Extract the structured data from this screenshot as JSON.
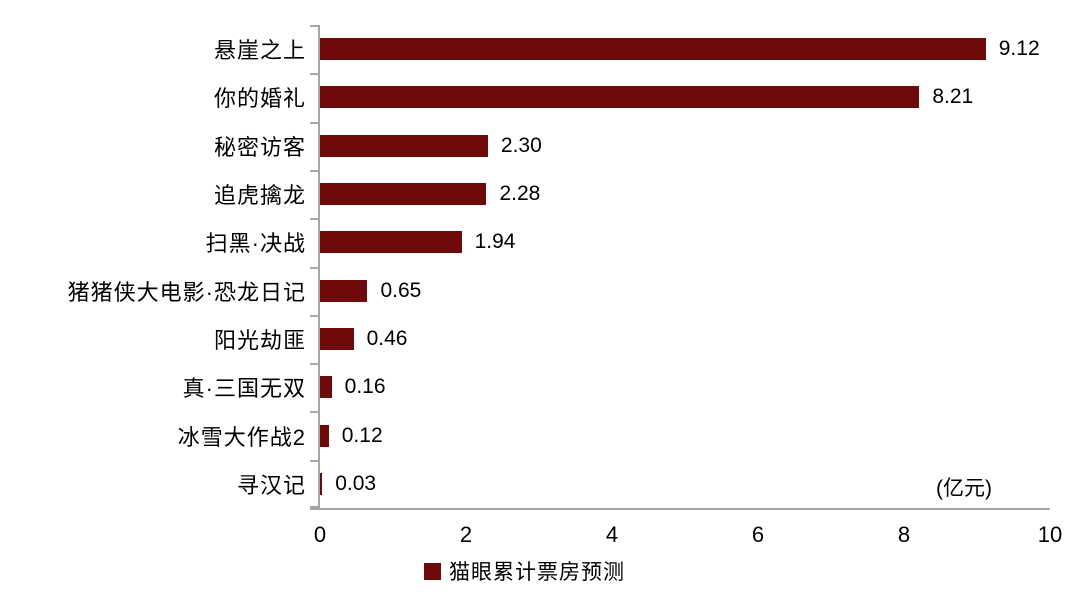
{
  "chart_data": {
    "type": "bar",
    "orientation": "horizontal",
    "title": "",
    "xlabel": "",
    "ylabel": "",
    "categories": [
      "悬崖之上",
      "你的婚礼",
      "秘密访客",
      "追虎擒龙",
      "扫黑·决战",
      "猪猪侠大电影·恐龙日记",
      "阳光劫匪",
      "真·三国无双",
      "冰雪大作战2",
      "寻汉记"
    ],
    "values": [
      9.12,
      8.21,
      2.3,
      2.28,
      1.94,
      0.65,
      0.46,
      0.16,
      0.12,
      0.03
    ],
    "value_labels": [
      "9.12",
      "8.21",
      "2.30",
      "2.28",
      "1.94",
      "0.65",
      "0.46",
      "0.16",
      "0.12",
      "0.03"
    ],
    "xlim": [
      0,
      10
    ],
    "x_ticks": [
      "0",
      "2",
      "4",
      "6",
      "8",
      "10"
    ],
    "x_tick_values": [
      0,
      2,
      4,
      6,
      8,
      10
    ],
    "unit_label": "(亿元)",
    "grid": false,
    "legend_position": "bottom",
    "legend": [
      {
        "label": "猫眼累计票房预测",
        "color": "#6e0a0a"
      }
    ],
    "bar_color": "#6e0a0a",
    "axis_color": "#a6a6a6",
    "text_color": "#000000"
  }
}
